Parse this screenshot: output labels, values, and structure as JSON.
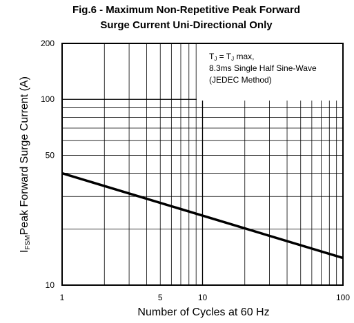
{
  "title_line1": "Fig.6 - Maximum Non-Repetitive Peak Forward",
  "title_line2": "Surge Current Uni-Directional Only",
  "annotation": {
    "line1_a": "T",
    "line1_a_sub": "J",
    "line1_b": " = T",
    "line1_b_sub": "J",
    "line1_c": " max,",
    "line2": "8.3ms Single Half Sine-Wave",
    "line3": "(JEDEC Method)"
  },
  "xlabel": "Number of Cycles at 60 Hz",
  "ylabel_prefix": "I",
  "ylabel_sub": "FSM",
  "ylabel_rest": "Peak Forward Surge Current (A)",
  "chart_data": {
    "type": "line",
    "x_scale": "log",
    "y_scale": "log",
    "xlim": [
      1,
      100
    ],
    "ylim": [
      10,
      200
    ],
    "x_tick_labels": [
      "1",
      "5",
      "10",
      "100"
    ],
    "x_tick_values": [
      1,
      5,
      10,
      100
    ],
    "y_tick_labels": [
      "10",
      "50",
      "100",
      "200"
    ],
    "y_tick_values": [
      10,
      50,
      100,
      200
    ],
    "grid": true,
    "series": [
      {
        "x": [
          1,
          100
        ],
        "y": [
          40,
          14
        ]
      }
    ],
    "line_color": "#000000"
  }
}
